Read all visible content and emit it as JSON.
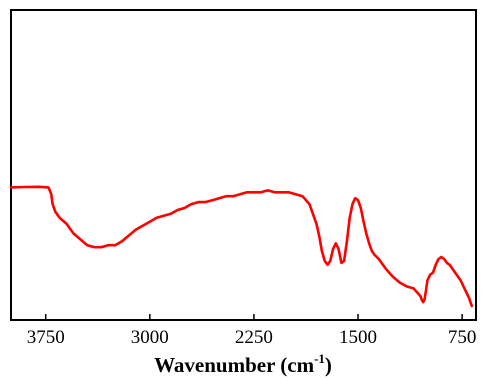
{
  "chart_data": {
    "type": "line",
    "title": "",
    "xlabel": "Wavenumber (cm",
    "xlabel_sup": "-1",
    "xlabel_suffix": ")",
    "ylabel": "",
    "x_reversed": true,
    "xlim": [
      4000,
      650
    ],
    "ylim": [
      0,
      1
    ],
    "x_ticks": [
      3750,
      3000,
      2250,
      1500,
      750
    ],
    "x_tick_labels": [
      "3750",
      "3000",
      "2250",
      "1500",
      "750"
    ],
    "y_ticks_shown": false,
    "grid": false,
    "legend": "none",
    "series": [
      {
        "color": "#ff0000",
        "x": [
          4000,
          3900,
          3800,
          3730,
          3710,
          3700,
          3680,
          3650,
          3600,
          3550,
          3500,
          3450,
          3400,
          3350,
          3300,
          3250,
          3200,
          3150,
          3100,
          3050,
          3000,
          2950,
          2900,
          2850,
          2800,
          2750,
          2700,
          2650,
          2600,
          2550,
          2500,
          2450,
          2400,
          2350,
          2300,
          2250,
          2200,
          2150,
          2100,
          2050,
          2000,
          1950,
          1900,
          1850,
          1800,
          1780,
          1760,
          1740,
          1720,
          1700,
          1680,
          1660,
          1640,
          1620,
          1600,
          1580,
          1560,
          1540,
          1520,
          1500,
          1480,
          1460,
          1440,
          1420,
          1400,
          1380,
          1350,
          1300,
          1250,
          1200,
          1150,
          1100,
          1075,
          1050,
          1040,
          1030,
          1020,
          1010,
          1000,
          980,
          960,
          940,
          920,
          900,
          880,
          860,
          840,
          820,
          800,
          780,
          760,
          740,
          720,
          700,
          680
        ],
        "y": [
          0.605,
          0.607,
          0.608,
          0.605,
          0.57,
          0.52,
          0.48,
          0.45,
          0.42,
          0.37,
          0.34,
          0.31,
          0.3,
          0.3,
          0.31,
          0.31,
          0.33,
          0.36,
          0.39,
          0.41,
          0.43,
          0.45,
          0.46,
          0.47,
          0.49,
          0.5,
          0.52,
          0.53,
          0.53,
          0.54,
          0.55,
          0.56,
          0.56,
          0.57,
          0.58,
          0.58,
          0.58,
          0.59,
          0.58,
          0.58,
          0.58,
          0.57,
          0.56,
          0.52,
          0.42,
          0.36,
          0.28,
          0.23,
          0.21,
          0.23,
          0.29,
          0.32,
          0.29,
          0.22,
          0.23,
          0.33,
          0.45,
          0.52,
          0.55,
          0.54,
          0.5,
          0.43,
          0.37,
          0.32,
          0.28,
          0.26,
          0.24,
          0.19,
          0.15,
          0.12,
          0.1,
          0.09,
          0.07,
          0.05,
          0.03,
          0.02,
          0.035,
          0.08,
          0.13,
          0.16,
          0.17,
          0.21,
          0.24,
          0.25,
          0.24,
          0.22,
          0.21,
          0.19,
          0.17,
          0.15,
          0.13,
          0.1,
          0.07,
          0.04,
          0.0
        ]
      }
    ]
  }
}
